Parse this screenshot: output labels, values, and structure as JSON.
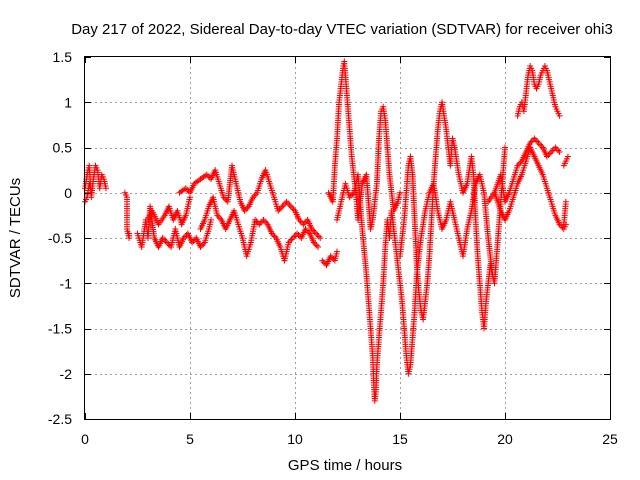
{
  "chart_data": {
    "type": "scatter",
    "title": "Day 217 of 2022, Sidereal Day-to-day VTEC variation (SDTVAR) for receiver ohi3",
    "xlabel": "GPS time / hours",
    "ylabel": "SDTVAR / TECUs",
    "xlim": [
      0,
      25
    ],
    "ylim": [
      -2.5,
      1.5
    ],
    "xticks": [
      0,
      5,
      10,
      15,
      20,
      25
    ],
    "yticks": [
      -2.5,
      -2,
      -1.5,
      -1,
      -0.5,
      0,
      0.5,
      1,
      1.5
    ],
    "xtick_labels": [
      "0",
      "5",
      "10",
      "15",
      "20",
      "25"
    ],
    "ytick_labels": [
      "-2.5",
      "-2",
      "-1.5",
      "-1",
      "-0.5",
      "0",
      "0.5",
      "1",
      "1.5"
    ],
    "grid": true,
    "marker": "+",
    "color": "#ff0000",
    "series": [
      {
        "name": "SDTVAR",
        "segments": [
          {
            "x": [
              0.0,
              0.1,
              0.2,
              0.3,
              0.4,
              0.5,
              0.6,
              0.7,
              0.8,
              0.9,
              1.0
            ],
            "y": [
              0.05,
              0.2,
              0.3,
              -0.05,
              0.15,
              0.3,
              0.25,
              0.05,
              0.2,
              0.15,
              0.05
            ]
          },
          {
            "x": [
              0.0,
              0.1,
              0.2,
              0.3
            ],
            "y": [
              -0.1,
              -0.05,
              0.1,
              0.0
            ]
          },
          {
            "x": [
              1.9,
              2.0,
              2.0,
              2.1,
              2.1
            ],
            "y": [
              0.0,
              -0.05,
              -0.4,
              -0.5,
              -0.45
            ]
          },
          {
            "x": [
              2.5,
              2.7,
              2.9,
              3.0,
              3.1,
              3.3,
              3.5,
              3.7,
              3.9,
              4.1,
              4.3,
              4.5,
              4.7,
              4.9,
              5.1,
              5.3,
              5.5,
              5.7,
              5.9,
              6.0
            ],
            "y": [
              -0.45,
              -0.6,
              -0.3,
              -0.5,
              -0.15,
              -0.5,
              -0.6,
              -0.5,
              -0.55,
              -0.6,
              -0.4,
              -0.6,
              -0.5,
              -0.45,
              -0.55,
              -0.5,
              -0.6,
              -0.55,
              -0.4,
              -0.3
            ]
          },
          {
            "x": [
              3.0,
              3.2,
              3.5,
              3.8,
              4.0,
              4.2,
              4.4,
              4.6,
              4.8,
              5.0
            ],
            "y": [
              -0.3,
              -0.2,
              -0.35,
              -0.25,
              -0.15,
              -0.3,
              -0.2,
              -0.35,
              -0.25,
              -0.05
            ]
          },
          {
            "x": [
              4.5,
              4.8,
              5.0,
              5.2,
              5.5,
              5.8,
              6.0,
              6.2,
              6.4,
              6.6,
              6.8,
              7.0,
              7.2,
              7.4,
              7.6,
              7.8,
              8.0,
              8.2,
              8.4,
              8.6,
              8.8,
              9.0,
              9.2,
              9.4,
              9.6,
              9.8,
              10.0,
              10.2,
              10.4,
              10.6,
              10.8,
              11.0,
              11.2
            ],
            "y": [
              0.0,
              0.05,
              0.0,
              0.1,
              0.15,
              0.2,
              0.15,
              0.25,
              0.1,
              -0.05,
              -0.1,
              0.3,
              0.1,
              -0.1,
              -0.2,
              -0.15,
              -0.05,
              0.0,
              0.15,
              0.25,
              0.1,
              -0.05,
              -0.2,
              -0.15,
              -0.1,
              -0.15,
              -0.2,
              -0.3,
              -0.35,
              -0.3,
              -0.4,
              -0.45,
              -0.5
            ]
          },
          {
            "x": [
              5.5,
              5.7,
              5.9,
              6.1,
              6.3,
              6.5,
              6.7,
              6.9,
              7.1,
              7.3,
              7.5,
              7.7,
              7.9,
              8.1,
              8.3,
              8.5,
              8.7,
              8.9,
              9.1,
              9.3,
              9.5,
              9.7,
              9.9,
              10.1,
              10.3,
              10.5,
              10.7,
              10.9,
              11.1
            ],
            "y": [
              -0.4,
              -0.3,
              -0.15,
              -0.05,
              -0.25,
              -0.3,
              -0.4,
              -0.3,
              -0.2,
              -0.35,
              -0.5,
              -0.7,
              -0.55,
              -0.3,
              -0.35,
              -0.3,
              -0.35,
              -0.45,
              -0.5,
              -0.6,
              -0.75,
              -0.55,
              -0.5,
              -0.45,
              -0.5,
              -0.4,
              -0.45,
              -0.55,
              -0.6
            ]
          },
          {
            "x": [
              11.3,
              11.5,
              11.7,
              11.9,
              12.0
            ],
            "y": [
              -0.75,
              -0.8,
              -0.7,
              -0.75,
              -0.65
            ]
          },
          {
            "x": [
              11.6,
              11.8,
              11.9,
              12.0,
              12.1,
              12.2,
              12.3,
              12.35,
              12.4,
              12.5,
              12.6,
              12.7,
              12.8,
              12.9,
              13.0,
              13.2,
              13.4,
              13.6,
              13.7,
              13.8,
              13.9,
              14.0,
              14.1,
              14.2,
              14.3,
              14.4,
              14.5,
              14.7,
              14.9,
              15.0
            ],
            "y": [
              0.0,
              -0.1,
              0.3,
              0.6,
              1.0,
              1.2,
              1.4,
              1.45,
              1.3,
              1.0,
              0.7,
              0.4,
              0.2,
              0.0,
              -0.3,
              0.1,
              0.2,
              -0.4,
              -0.3,
              -0.1,
              0.1,
              0.6,
              0.9,
              0.95,
              0.8,
              0.5,
              0.2,
              -0.2,
              -0.1,
              0.0
            ]
          },
          {
            "x": [
              12.0,
              12.2,
              12.4,
              12.6,
              12.8,
              13.0,
              13.2,
              13.4,
              13.5,
              13.6,
              13.7,
              13.75,
              13.8,
              13.85,
              13.9,
              14.0,
              14.1,
              14.2,
              14.3,
              14.4,
              14.5,
              14.6,
              14.7,
              14.8,
              14.9,
              15.0,
              15.1,
              15.2,
              15.3,
              15.4,
              15.5,
              15.6,
              15.7,
              15.8,
              15.9,
              16.0
            ],
            "y": [
              -0.3,
              -0.1,
              0.1,
              -0.05,
              0.0,
              0.2,
              -0.4,
              -0.9,
              -1.2,
              -1.5,
              -1.8,
              -2.1,
              -2.3,
              -2.2,
              -1.9,
              -1.6,
              -1.3,
              -1.0,
              -0.6,
              -0.3,
              -0.5,
              -0.2,
              -0.4,
              -0.6,
              -0.8,
              -1.0,
              -1.2,
              -1.5,
              -1.8,
              -2.0,
              -1.9,
              -1.6,
              -1.3,
              -0.9,
              -0.7,
              -0.5
            ]
          },
          {
            "x": [
              15.0,
              15.1,
              15.2,
              15.3,
              15.4,
              15.5,
              15.6,
              15.7,
              15.8,
              15.9,
              16.0,
              16.1,
              16.2,
              16.3,
              16.4,
              16.5,
              16.6,
              16.7,
              16.8,
              16.9,
              17.0,
              17.1,
              17.2,
              17.3,
              17.4,
              17.5,
              17.6,
              17.8,
              18.0,
              18.2,
              18.4,
              18.5,
              18.6,
              18.7,
              18.8,
              18.9,
              19.0,
              19.1,
              19.2,
              19.3,
              19.4
            ],
            "y": [
              -0.7,
              -0.5,
              -0.3,
              0.0,
              0.3,
              0.4,
              0.2,
              -0.3,
              -0.8,
              -1.1,
              -1.3,
              -1.4,
              -1.2,
              -1.0,
              -0.7,
              -0.3,
              0.1,
              0.4,
              0.7,
              0.9,
              1.0,
              0.85,
              0.7,
              0.5,
              0.3,
              0.6,
              0.5,
              0.2,
              0.0,
              0.1,
              0.4,
              0.2,
              -0.3,
              -0.7,
              -1.0,
              -1.3,
              -1.5,
              -1.2,
              -1.0,
              -0.8,
              -0.9
            ]
          },
          {
            "x": [
              16.0,
              16.2,
              16.4,
              16.6,
              16.8,
              17.0,
              17.2,
              17.4,
              17.6,
              17.8,
              18.0,
              18.2,
              18.4,
              18.6,
              18.8,
              19.0,
              19.2,
              19.4,
              19.5,
              19.6,
              19.7,
              19.8,
              19.9,
              20.0
            ],
            "y": [
              -0.5,
              -0.2,
              0.0,
              0.1,
              -0.2,
              -0.4,
              -0.3,
              -0.1,
              -0.3,
              -0.5,
              -0.7,
              -0.4,
              -0.2,
              0.1,
              0.2,
              0.0,
              -0.5,
              -0.9,
              -1.0,
              -0.7,
              -0.4,
              -0.1,
              0.2,
              0.5
            ]
          },
          {
            "x": [
              19.2,
              19.5,
              19.8,
              20.0,
              20.2,
              20.4,
              20.6,
              20.8,
              21.0,
              21.2,
              21.4,
              21.6,
              21.8,
              22.0,
              22.2,
              22.4,
              22.6,
              22.8,
              22.9
            ],
            "y": [
              -0.1,
              0.0,
              -0.2,
              -0.3,
              -0.2,
              -0.05,
              0.1,
              0.2,
              0.35,
              0.5,
              0.4,
              0.3,
              0.2,
              0.05,
              -0.1,
              -0.25,
              -0.35,
              -0.4,
              -0.35
            ]
          },
          {
            "x": [
              19.5,
              19.8,
              20.0,
              20.2,
              20.4,
              20.6,
              20.8,
              21.0,
              21.2,
              21.4,
              21.6,
              21.8,
              22.0,
              22.2,
              22.4,
              22.6
            ],
            "y": [
              0.0,
              0.2,
              -0.1,
              0.0,
              0.15,
              0.3,
              0.35,
              0.45,
              0.55,
              0.6,
              0.55,
              0.5,
              0.4,
              0.45,
              0.5,
              0.45
            ]
          },
          {
            "x": [
              20.6,
              20.7,
              20.8,
              20.9,
              21.0,
              21.1,
              21.2,
              21.3,
              21.4,
              21.5,
              21.6,
              21.7,
              21.8,
              21.9,
              22.0,
              22.1,
              22.2,
              22.3,
              22.4,
              22.5,
              22.6
            ],
            "y": [
              0.85,
              0.95,
              1.0,
              0.9,
              1.1,
              1.3,
              1.4,
              1.35,
              1.2,
              1.15,
              1.2,
              1.3,
              1.35,
              1.4,
              1.35,
              1.25,
              1.15,
              1.05,
              0.95,
              0.9,
              0.85
            ]
          },
          {
            "x": [
              22.8,
              22.9,
              23.0
            ],
            "y": [
              0.3,
              0.35,
              0.4
            ]
          },
          {
            "x": [
              22.8,
              22.9
            ],
            "y": [
              -0.35,
              -0.1
            ]
          }
        ]
      }
    ]
  }
}
